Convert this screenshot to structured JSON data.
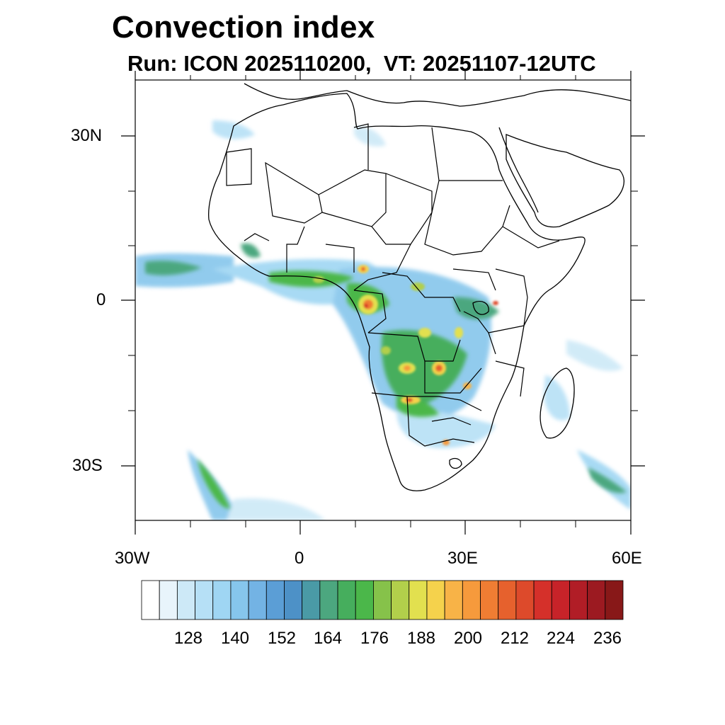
{
  "title": "Convection index",
  "subtitle": "Run: ICON 2025110200,  VT: 20251107-12UTC",
  "axes": {
    "lat_labels": [
      "30N",
      "0",
      "30S"
    ],
    "lon_labels": [
      "30W",
      "0",
      "30E",
      "60E"
    ]
  },
  "colorbar": {
    "labels": [
      "128",
      "140",
      "152",
      "164",
      "176",
      "188",
      "200",
      "212",
      "224",
      "236"
    ],
    "colors": [
      "#ffffff",
      "#e8f4fb",
      "#cde9f7",
      "#b6e0f6",
      "#9fd6f3",
      "#86c6ec",
      "#73b3e4",
      "#5b9ed6",
      "#4d91c7",
      "#4a9aa6",
      "#4ca77f",
      "#46ae5d",
      "#4bb74a",
      "#86c24a",
      "#b2cf4b",
      "#e2e04f",
      "#f5d24c",
      "#f8b347",
      "#f69a3c",
      "#f07d33",
      "#e6612d",
      "#dd4a2b",
      "#d5302a",
      "#c72329",
      "#b11d26",
      "#9c1a21",
      "#881818"
    ]
  },
  "map_extent": {
    "lon_min": -30,
    "lon_max": 60,
    "lat_min": -40,
    "lat_max": 40
  }
}
